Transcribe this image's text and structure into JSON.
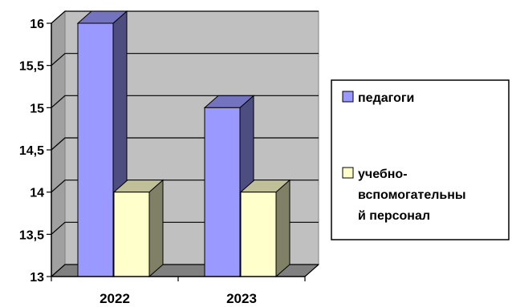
{
  "chart_data": {
    "type": "bar",
    "categories": [
      "2022",
      "2023"
    ],
    "series": [
      {
        "name": "педагоги",
        "values": [
          16,
          15
        ],
        "color": "#9999FF"
      },
      {
        "name": "учебно-вспомогательный персонал",
        "values": [
          14,
          14
        ],
        "color": "#FFFFCC"
      }
    ],
    "ylim": [
      13,
      16
    ],
    "yticks": [
      "13",
      "13,5",
      "14",
      "14,5",
      "15",
      "15,5",
      "16"
    ],
    "grid": true,
    "legend_position": "right",
    "legend_labels": [
      [
        "педагоги"
      ],
      [
        "учебно-",
        "вспомогательны",
        "й персонал"
      ]
    ],
    "style": "3d-column",
    "colors": {
      "plot_back_wall": "#C0C0C0",
      "plot_floor": "#808080",
      "gridline": "#000000"
    }
  }
}
